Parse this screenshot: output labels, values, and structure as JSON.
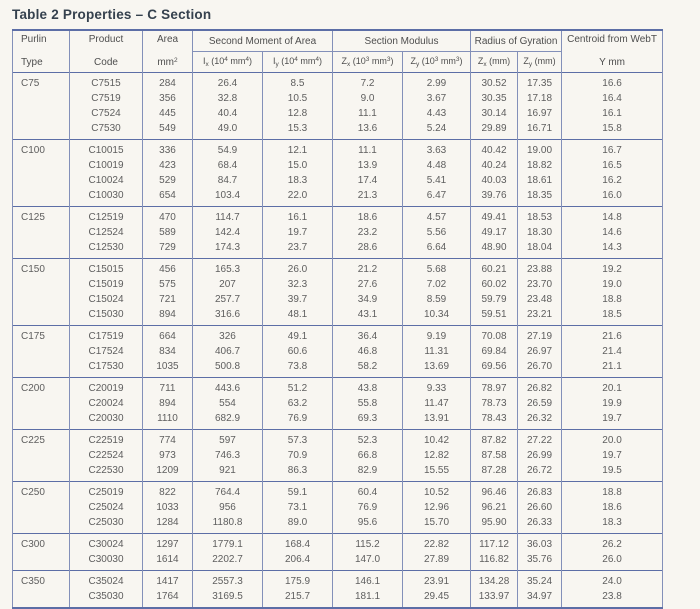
{
  "title": "Table 2 Properties – C Section",
  "colors": {
    "rule_blue": "#5c6ea6",
    "grid_blue": "#8390b9",
    "title_text": "#35414e",
    "body_text": "#5e5e5e",
    "page_background": "#f8f6f1"
  },
  "table": {
    "header": {
      "purlin_line1": "Purlin",
      "purlin_line2": "Type",
      "product_line1": "Product",
      "product_line2": "Code",
      "area_line1": "Area",
      "area_unit": "mm",
      "area_sup": "2",
      "group_second_moment": "Second Moment of Area",
      "group_section_modulus": "Section Modulus",
      "group_radius_gyration": "Radius of Gyration",
      "centroid_line1": "Centroid from WebT",
      "centroid_line2": "Y mm",
      "ix": {
        "s": "I",
        "b": "x",
        "u1": " (10",
        "p1": "4",
        "u2": " mm",
        "p2": "4",
        "u3": ")"
      },
      "iy": {
        "s": "I",
        "b": "y",
        "u1": " (10",
        "p1": "4",
        "u2": " mm",
        "p2": "4",
        "u3": ")"
      },
      "zx": {
        "s": "Z",
        "b": "x",
        "u1": " (10",
        "p1": "3",
        "u2": " mm",
        "p2": "3",
        "u3": ")"
      },
      "zy": {
        "s": "Z",
        "b": "y",
        "u1": " (10",
        "p1": "3",
        "u2": " mm",
        "p2": "3",
        "u3": ")"
      },
      "rx": {
        "s": "Z",
        "b": "x",
        "u1": " (mm)"
      },
      "ry": {
        "s": "Z",
        "b": "y",
        "u1": " (mm)"
      }
    },
    "groups": [
      {
        "type": "C75",
        "rows": [
          [
            "C7515",
            "284",
            "26.4",
            "8.5",
            "7.2",
            "2.99",
            "30.52",
            "17.35",
            "16.6"
          ],
          [
            "C7519",
            "356",
            "32.8",
            "10.5",
            "9.0",
            "3.67",
            "30.35",
            "17.18",
            "16.4"
          ],
          [
            "C7524",
            "445",
            "40.4",
            "12.8",
            "11.1",
            "4.43",
            "30.14",
            "16.97",
            "16.1"
          ],
          [
            "C7530",
            "549",
            "49.0",
            "15.3",
            "13.6",
            "5.24",
            "29.89",
            "16.71",
            "15.8"
          ]
        ]
      },
      {
        "type": "C100",
        "rows": [
          [
            "C10015",
            "336",
            "54.9",
            "12.1",
            "11.1",
            "3.63",
            "40.42",
            "19.00",
            "16.7"
          ],
          [
            "C10019",
            "423",
            "68.4",
            "15.0",
            "13.9",
            "4.48",
            "40.24",
            "18.82",
            "16.5"
          ],
          [
            "C10024",
            "529",
            "84.7",
            "18.3",
            "17.4",
            "5.41",
            "40.03",
            "18.61",
            "16.2"
          ],
          [
            "C10030",
            "654",
            "103.4",
            "22.0",
            "21.3",
            "6.47",
            "39.76",
            "18.35",
            "16.0"
          ]
        ]
      },
      {
        "type": "C125",
        "rows": [
          [
            "C12519",
            "470",
            "114.7",
            "16.1",
            "18.6",
            "4.57",
            "49.41",
            "18.53",
            "14.8"
          ],
          [
            "C12524",
            "589",
            "142.4",
            "19.7",
            "23.2",
            "5.56",
            "49.17",
            "18.30",
            "14.6"
          ],
          [
            "C12530",
            "729",
            "174.3",
            "23.7",
            "28.6",
            "6.64",
            "48.90",
            "18.04",
            "14.3"
          ]
        ]
      },
      {
        "type": "C150",
        "rows": [
          [
            "C15015",
            "456",
            "165.3",
            "26.0",
            "21.2",
            "5.68",
            "60.21",
            "23.88",
            "19.2"
          ],
          [
            "C15019",
            "575",
            "207",
            "32.3",
            "27.6",
            "7.02",
            "60.02",
            "23.70",
            "19.0"
          ],
          [
            "C15024",
            "721",
            "257.7",
            "39.7",
            "34.9",
            "8.59",
            "59.79",
            "23.48",
            "18.8"
          ],
          [
            "C15030",
            "894",
            "316.6",
            "48.1",
            "43.1",
            "10.34",
            "59.51",
            "23.21",
            "18.5"
          ]
        ]
      },
      {
        "type": "C175",
        "rows": [
          [
            "C17519",
            "664",
            "326",
            "49.1",
            "36.4",
            "9.19",
            "70.08",
            "27.19",
            "21.6"
          ],
          [
            "C17524",
            "834",
            "406.7",
            "60.6",
            "46.8",
            "11.31",
            "69.84",
            "26.97",
            "21.4"
          ],
          [
            "C17530",
            "1035",
            "500.8",
            "73.8",
            "58.2",
            "13.69",
            "69.56",
            "26.70",
            "21.1"
          ]
        ]
      },
      {
        "type": "C200",
        "rows": [
          [
            "C20019",
            "711",
            "443.6",
            "51.2",
            "43.8",
            "9.33",
            "78.97",
            "26.82",
            "20.1"
          ],
          [
            "C20024",
            "894",
            "554",
            "63.2",
            "55.8",
            "11.47",
            "78.73",
            "26.59",
            "19.9"
          ],
          [
            "C20030",
            "1110",
            "682.9",
            "76.9",
            "69.3",
            "13.91",
            "78.43",
            "26.32",
            "19.7"
          ]
        ]
      },
      {
        "type": "C225",
        "rows": [
          [
            "C22519",
            "774",
            "597",
            "57.3",
            "52.3",
            "10.42",
            "87.82",
            "27.22",
            "20.0"
          ],
          [
            "C22524",
            "973",
            "746.3",
            "70.9",
            "66.8",
            "12.82",
            "87.58",
            "26.99",
            "19.7"
          ],
          [
            "C22530",
            "1209",
            "921",
            "86.3",
            "82.9",
            "15.55",
            "87.28",
            "26.72",
            "19.5"
          ]
        ]
      },
      {
        "type": "C250",
        "rows": [
          [
            "C25019",
            "822",
            "764.4",
            "59.1",
            "60.4",
            "10.52",
            "96.46",
            "26.83",
            "18.8"
          ],
          [
            "C25024",
            "1033",
            "956",
            "73.1",
            "76.9",
            "12.96",
            "96.21",
            "26.60",
            "18.6"
          ],
          [
            "C25030",
            "1284",
            "1180.8",
            "89.0",
            "95.6",
            "15.70",
            "95.90",
            "26.33",
            "18.3"
          ]
        ]
      },
      {
        "type": "C300",
        "rows": [
          [
            "C30024",
            "1297",
            "1779.1",
            "168.4",
            "115.2",
            "22.82",
            "117.12",
            "36.03",
            "26.2"
          ],
          [
            "C30030",
            "1614",
            "2202.7",
            "206.4",
            "147.0",
            "27.89",
            "116.82",
            "35.76",
            "26.0"
          ]
        ]
      },
      {
        "type": "C350",
        "rows": [
          [
            "C35024",
            "1417",
            "2557.3",
            "175.9",
            "146.1",
            "23.91",
            "134.28",
            "35.24",
            "24.0"
          ],
          [
            "C35030",
            "1764",
            "3169.5",
            "215.7",
            "181.1",
            "29.45",
            "133.97",
            "34.97",
            "23.8"
          ]
        ]
      }
    ]
  }
}
